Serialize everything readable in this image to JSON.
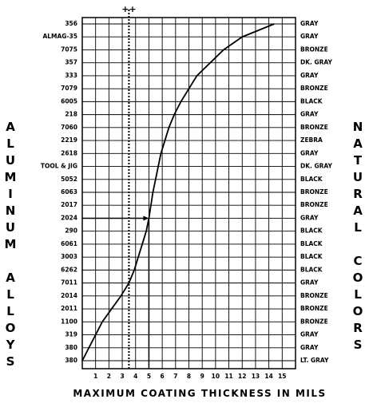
{
  "chart_data": {
    "type": "line",
    "y_axis_label": "ALUMINUM ALLOYS",
    "y2_axis_label": "NATURAL COLORS",
    "x_axis_label": "MAXIMUM COATING THICKNESS IN MILS",
    "categories": [
      "356",
      "ALMAG-35",
      "7075",
      "357",
      "333",
      "7079",
      "6005",
      "218",
      "7060",
      "2219",
      "2618",
      "TOOL & JIG",
      "5052",
      "6063",
      "2017",
      "2024",
      "290",
      "6061",
      "3003",
      "6262",
      "7011",
      "2014",
      "2011",
      "1100",
      "319",
      "380",
      "380"
    ],
    "colors": [
      "GRAY",
      "GRAY",
      "BRONZE",
      "DK. GRAY",
      "GRAY",
      "BRONZE",
      "BLACK",
      "GRAY",
      "BRONZE",
      "ZEBRA",
      "GRAY",
      "DK. GRAY",
      "BLACK",
      "BRONZE",
      "BRONZE",
      "GRAY",
      "BLACK",
      "BLACK",
      "BLACK",
      "BLACK",
      "GRAY",
      "BRONZE",
      "BRONZE",
      "BRONZE",
      "GRAY",
      "GRAY",
      "LT. GRAY"
    ],
    "values": [
      14.4,
      12,
      10.6,
      9.6,
      8.6,
      8,
      7.4,
      6.9,
      6.5,
      6.2,
      5.9,
      5.7,
      5.5,
      5.3,
      5.15,
      5.0,
      4.8,
      4.5,
      4.2,
      3.9,
      3.5,
      2.9,
      2.2,
      1.5,
      1,
      0.5,
      0
    ],
    "color": "#000000",
    "annotation": {
      "text": "++",
      "x": 3.5
    },
    "xlim": [
      0,
      16
    ],
    "xticks": [
      1,
      2,
      3,
      4,
      5,
      6,
      7,
      8,
      9,
      10,
      11,
      12,
      13,
      14,
      15
    ],
    "grid": true
  }
}
